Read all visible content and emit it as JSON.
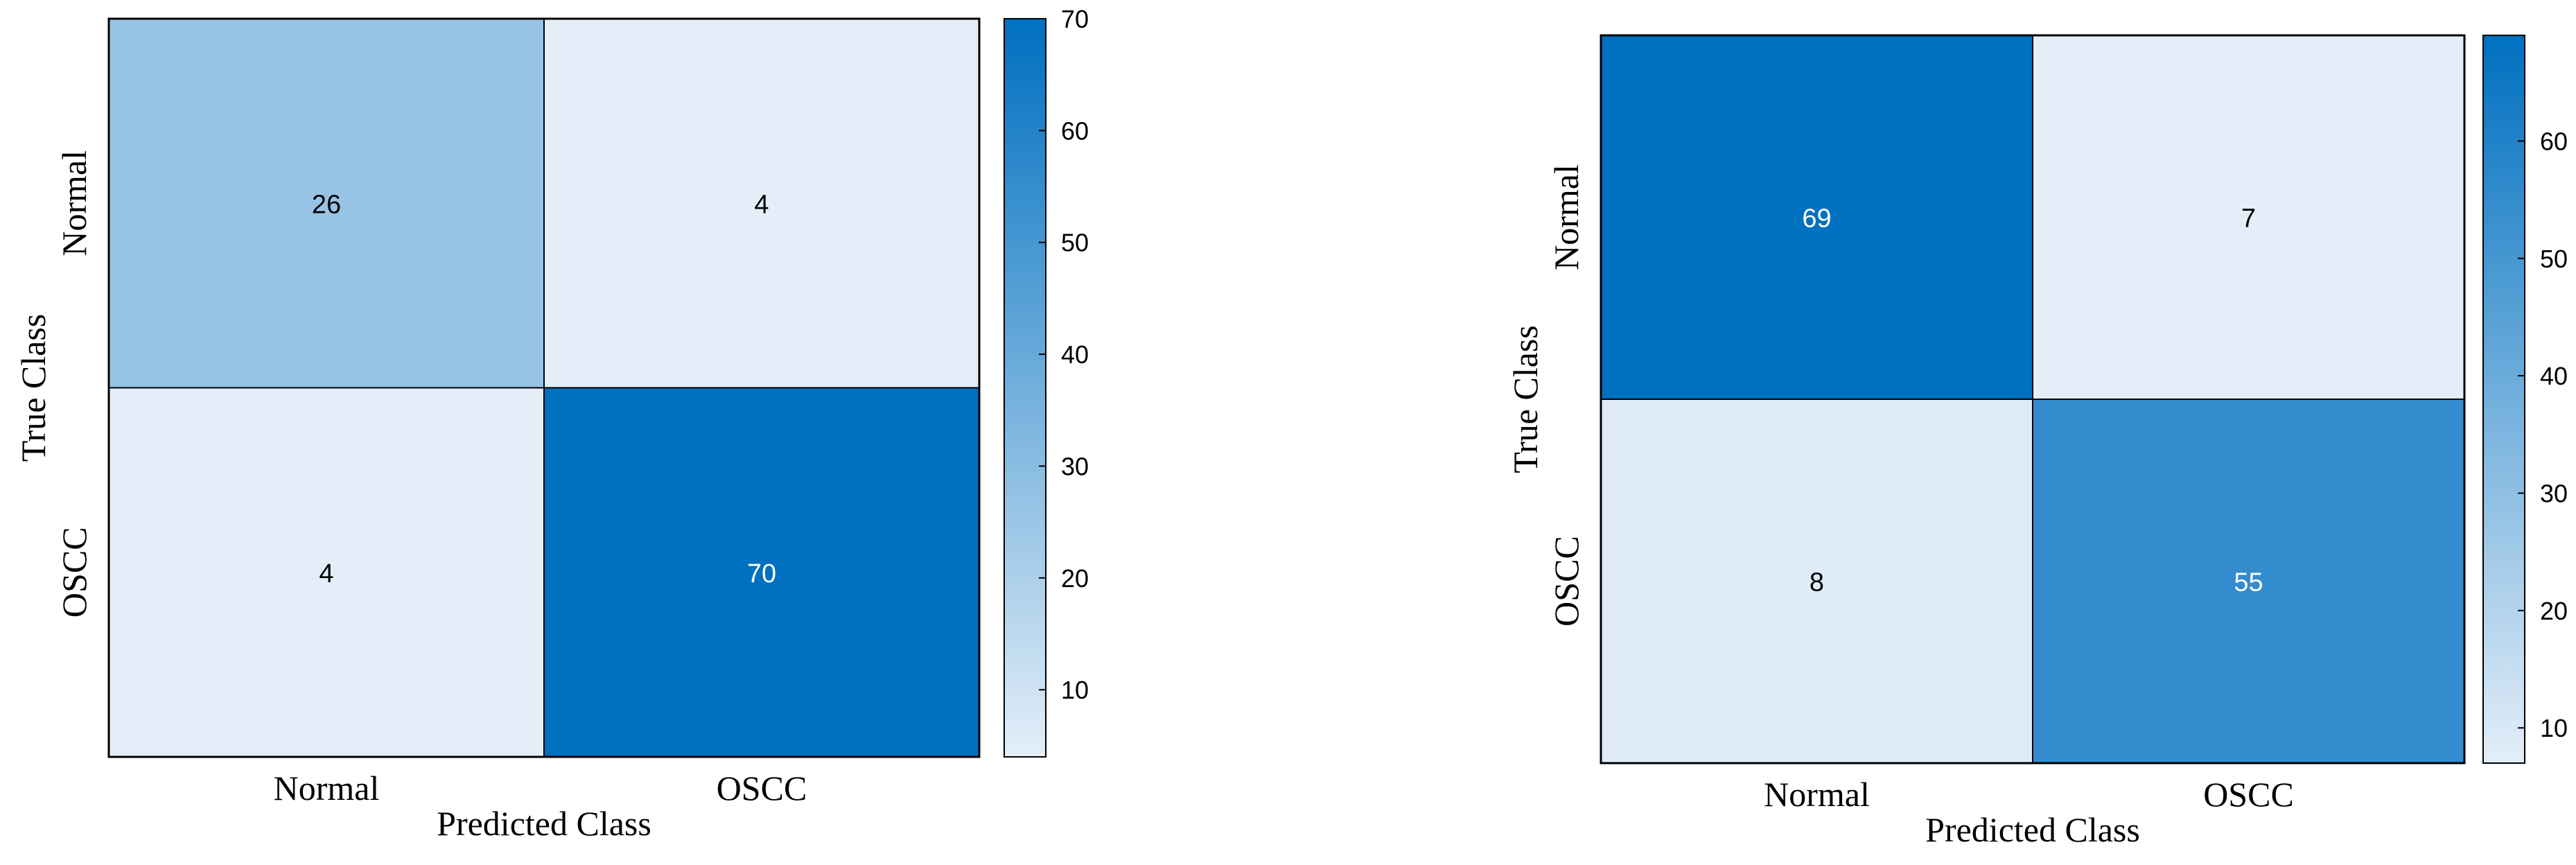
{
  "chart_data": [
    {
      "type": "heatmap",
      "row_categories": [
        "Normal",
        "OSCC"
      ],
      "col_categories": [
        "Normal",
        "OSCC"
      ],
      "values": [
        [
          26,
          4
        ],
        [
          4,
          70
        ]
      ],
      "xlabel": "Predicted Class",
      "ylabel": "True Class",
      "colorbar": {
        "min": 4,
        "max": 70,
        "ticks": [
          10,
          20,
          30,
          40,
          50,
          60,
          70
        ]
      },
      "colors": {
        "low": "#e3eef8",
        "high": "#0070c0",
        "text_dark": "#000000",
        "text_light": "#ffffff"
      },
      "grid": false
    },
    {
      "type": "heatmap",
      "row_categories": [
        "Normal",
        "OSCC"
      ],
      "col_categories": [
        "Normal",
        "OSCC"
      ],
      "values": [
        [
          69,
          7
        ],
        [
          8,
          55
        ]
      ],
      "xlabel": "Predicted Class",
      "ylabel": "True Class",
      "colorbar": {
        "min": 7,
        "max": 69,
        "ticks": [
          10,
          20,
          30,
          40,
          50,
          60
        ]
      },
      "colors": {
        "low": "#e3eef8",
        "high": "#0070c0",
        "text_dark": "#000000",
        "text_light": "#ffffff"
      },
      "grid": false
    }
  ]
}
